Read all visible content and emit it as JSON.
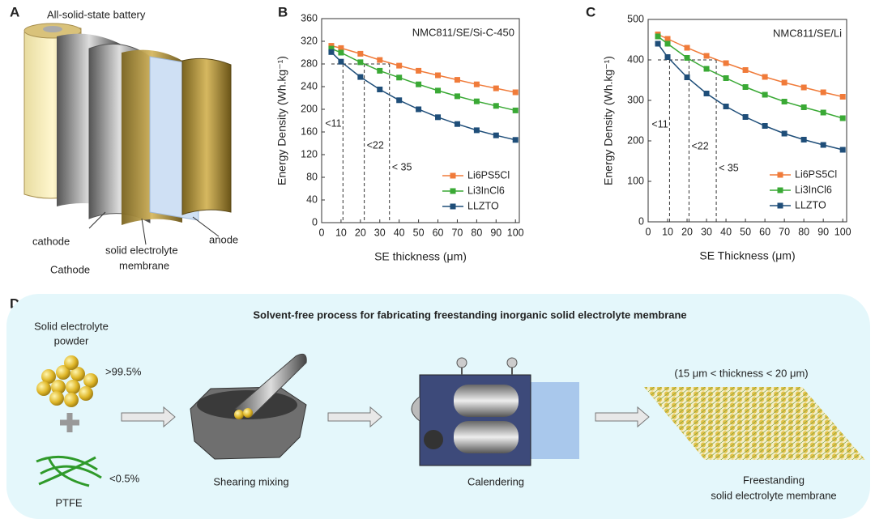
{
  "panel_labels": [
    "A",
    "B",
    "C",
    "D"
  ],
  "battery": {
    "title": "All-solid-state battery",
    "cathode": "cathode",
    "cathode_caption": "Cathode",
    "membrane": [
      "solid electrolyte",
      "membrane"
    ],
    "anode": "anode"
  },
  "chart_data": [
    {
      "type": "line",
      "title": "NMC811/SE/Si-C-450",
      "x_label": "SE thickness (μm)",
      "y_label": "Energy Density (Wh.kg⁻¹)",
      "x": [
        5,
        10,
        20,
        30,
        40,
        50,
        60,
        70,
        80,
        90,
        100
      ],
      "series": [
        {
          "name": "Li6PS5Cl",
          "color": "#f07b3a",
          "values": [
            312,
            308,
            298,
            287,
            277,
            268,
            260,
            252,
            244,
            237,
            230
          ]
        },
        {
          "name": "Li3InCl6",
          "color": "#3aa935",
          "values": [
            307,
            300,
            283,
            268,
            256,
            244,
            233,
            223,
            214,
            206,
            198
          ]
        },
        {
          "name": "LLZTO",
          "color": "#1f4e79",
          "values": [
            301,
            284,
            257,
            235,
            216,
            200,
            186,
            174,
            163,
            154,
            146
          ]
        }
      ],
      "xlim": [
        0,
        102
      ],
      "xticks": [
        0,
        10,
        20,
        30,
        40,
        50,
        60,
        70,
        80,
        90,
        100
      ],
      "ylim": [
        0,
        360
      ],
      "yticks": [
        0,
        40,
        80,
        120,
        160,
        200,
        240,
        280,
        320,
        360
      ],
      "legend": "lower right",
      "ref_y": 280,
      "annotations": [
        {
          "text": "<11",
          "x": 11
        },
        {
          "text": "<22",
          "x": 22
        },
        {
          "text": "< 35",
          "x": 35
        }
      ]
    },
    {
      "type": "line",
      "title": "NMC811/SE/Li",
      "x_label": "SE Thickness (μm)",
      "y_label": "Energy Density (Wh.kg⁻¹)",
      "x": [
        5,
        10,
        20,
        30,
        40,
        50,
        60,
        70,
        80,
        90,
        100
      ],
      "series": [
        {
          "name": "Li6PS5Cl",
          "color": "#f07b3a",
          "values": [
            463,
            452,
            430,
            410,
            392,
            375,
            358,
            344,
            332,
            320,
            309
          ]
        },
        {
          "name": "Li3InCl6",
          "color": "#3aa935",
          "values": [
            458,
            440,
            405,
            378,
            355,
            333,
            314,
            297,
            283,
            270,
            256
          ]
        },
        {
          "name": "LLZTO",
          "color": "#1f4e79",
          "values": [
            440,
            407,
            357,
            317,
            285,
            259,
            237,
            218,
            203,
            190,
            178
          ]
        }
      ],
      "xlim": [
        0,
        102
      ],
      "xticks": [
        0,
        10,
        20,
        30,
        40,
        50,
        60,
        70,
        80,
        90,
        100
      ],
      "ylim": [
        0,
        500
      ],
      "yticks": [
        0,
        100,
        200,
        300,
        400,
        500
      ],
      "legend": "lower right",
      "ref_y": 400,
      "annotations": [
        {
          "text": "<11",
          "x": 11
        },
        {
          "text": "<22",
          "x": 21
        },
        {
          "text": "< 35",
          "x": 35
        }
      ]
    }
  ],
  "process": {
    "title": "Solvent-free process for fabricating freestanding inorganic solid electrolyte membrane",
    "powder": [
      "Solid electrolyte",
      "powder"
    ],
    "powder_share": ">99.5%",
    "binder_share": "<0.5%",
    "binder": "PTFE",
    "steps": [
      "Shearing mixing",
      "Calendering"
    ],
    "thickness": "(15 μm < thickness < 20 μm)",
    "product": [
      "Freestanding",
      "solid electrolyte membrane"
    ]
  }
}
